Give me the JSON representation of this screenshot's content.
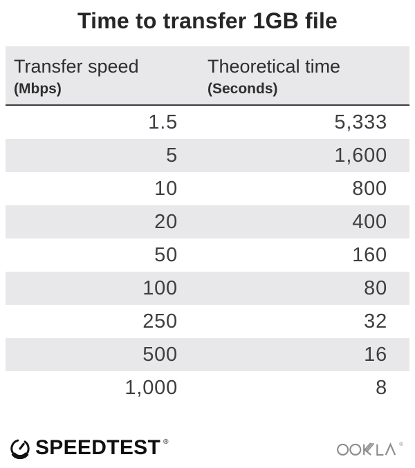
{
  "title": "Time to transfer 1GB file",
  "table": {
    "col1_header": "Transfer speed",
    "col1_unit": "(Mbps)",
    "col2_header": "Theoretical time",
    "col2_unit": "(Seconds)",
    "rows": [
      {
        "speed": "1.5",
        "time": "5,333"
      },
      {
        "speed": "5",
        "time": "1,600"
      },
      {
        "speed": "10",
        "time": "800"
      },
      {
        "speed": "20",
        "time": "400"
      },
      {
        "speed": "50",
        "time": "160"
      },
      {
        "speed": "100",
        "time": "80"
      },
      {
        "speed": "250",
        "time": "32"
      },
      {
        "speed": "500",
        "time": "16"
      },
      {
        "speed": "1,000",
        "time": "8"
      }
    ]
  },
  "footer": {
    "speedtest_label": "SPEEDTEST",
    "speedtest_reg": "®",
    "ookla_label": "OOKLA",
    "ookla_reg": "®",
    "icons": {
      "gauge": "speedtest-gauge-icon",
      "ookla_wordmark": "ookla-logo"
    }
  },
  "colors": {
    "stripe": "#e8e8eb",
    "rule": "#3a3a3a",
    "title_color": "#262626",
    "header_text": "#2e2e2e",
    "number_color": "#3e3e3e",
    "speedtest_color": "#0f0f0f",
    "ookla_color": "#8d8d8d"
  },
  "chart_data": {
    "type": "table",
    "title": "Time to transfer 1GB file",
    "columns": [
      "Transfer speed (Mbps)",
      "Theoretical time (Seconds)"
    ],
    "rows": [
      [
        1.5,
        5333
      ],
      [
        5,
        1600
      ],
      [
        10,
        800
      ],
      [
        20,
        400
      ],
      [
        50,
        160
      ],
      [
        100,
        80
      ],
      [
        250,
        32
      ],
      [
        500,
        16
      ],
      [
        1000,
        8
      ]
    ],
    "layout": {
      "zebra_stripes": true,
      "header_rule": true,
      "numbers_right_aligned": true
    }
  }
}
